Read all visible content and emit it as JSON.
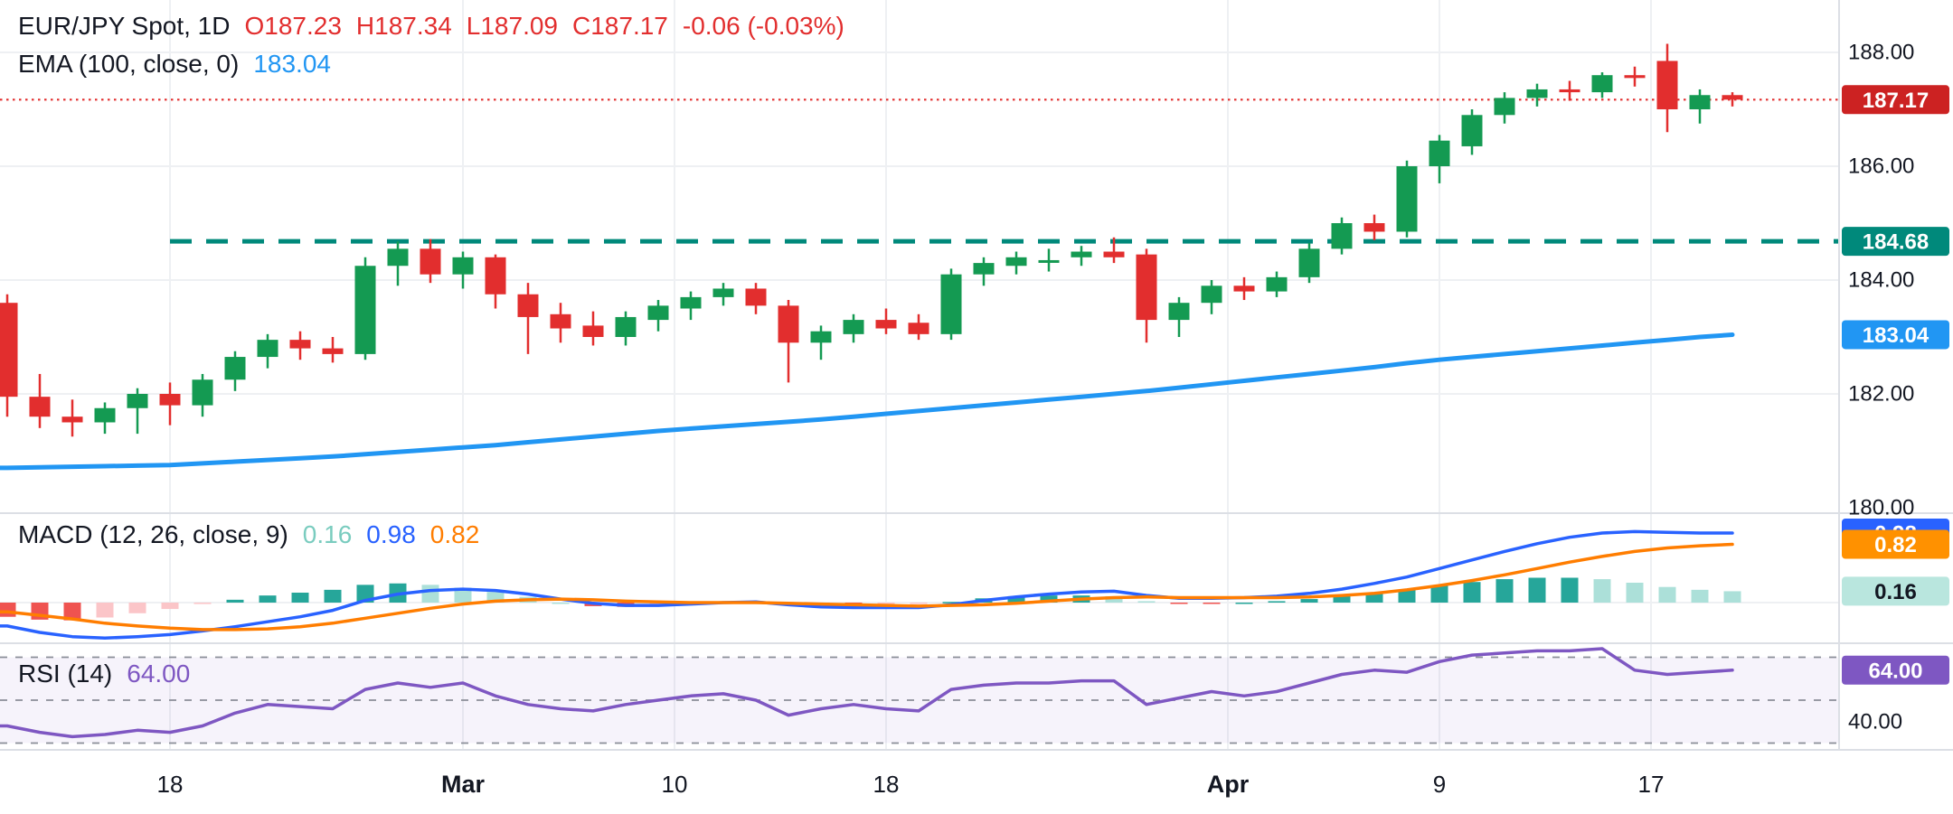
{
  "header": {
    "symbol": "EUR/JPY Spot, 1D",
    "o": "O187.23",
    "h": "H187.34",
    "l": "L187.09",
    "c": "C187.17",
    "change": "-0.06 (-0.03%)",
    "ema_label": "EMA (100, close, 0)",
    "ema_value": "183.04"
  },
  "colors": {
    "up": "#149a52",
    "down": "#e22e2e",
    "badge_red": "#cc2222",
    "teal": "#00897b",
    "ema_blue": "#2196f3",
    "macd_blue": "#2962ff",
    "signal_orange": "#ff7d00",
    "signal_badge": "#ff9100",
    "hist_pos": "#26a69a",
    "hist_pos_light": "#ace0d9",
    "hist_neg": "#ef5350",
    "hist_neg_light": "#fbc5c8",
    "hist_badge_bg": "#b9e6de",
    "rsi_purple": "#7e57c2",
    "rsi_band": "rgba(126,87,194,0.07)",
    "rsi_level": "#8a8e98",
    "grid": "#eef0f3",
    "separator": "#dcdfe5",
    "text": "#131722"
  },
  "chart_data": [
    {
      "type": "candlestick",
      "pane": "price",
      "title": "EUR/JPY Spot, 1D",
      "ylim": [
        180,
        188
      ],
      "grid": true,
      "y_axis_ticks": [
        {
          "value": 188,
          "label": "188.00"
        },
        {
          "value": 186,
          "label": "186.00"
        },
        {
          "value": 184,
          "label": "184.00"
        },
        {
          "value": 182,
          "label": "182.00"
        },
        {
          "value": 180,
          "label": "180.00"
        }
      ],
      "x_ticks": [
        {
          "index": 5,
          "label": "18",
          "bold": false
        },
        {
          "index": 14,
          "label": "Mar",
          "bold": true
        },
        {
          "index": 20.5,
          "label": "10",
          "bold": false
        },
        {
          "index": 27,
          "label": "18",
          "bold": false
        },
        {
          "index": 37.5,
          "label": "Apr",
          "bold": true
        },
        {
          "index": 44,
          "label": "9",
          "bold": false
        },
        {
          "index": 50.5,
          "label": "17",
          "bold": false
        }
      ],
      "price_line": {
        "value": 187.17,
        "label": "187.17",
        "style": "dotted"
      },
      "level_line": {
        "value": 184.68,
        "label": "184.68",
        "style": "dashed",
        "starts_at_index": 5
      },
      "ema": {
        "name": "EMA (100, close, 0)",
        "last": 183.04,
        "label": "183.04",
        "values": [
          180.7,
          180.71,
          180.72,
          180.73,
          180.74,
          180.75,
          180.78,
          180.81,
          180.84,
          180.87,
          180.9,
          180.94,
          180.98,
          181.02,
          181.06,
          181.1,
          181.15,
          181.2,
          181.25,
          181.3,
          181.35,
          181.39,
          181.43,
          181.47,
          181.51,
          181.55,
          181.6,
          181.65,
          181.7,
          181.75,
          181.8,
          181.85,
          181.9,
          181.95,
          182.0,
          182.05,
          182.11,
          182.17,
          182.23,
          182.29,
          182.35,
          182.41,
          182.47,
          182.54,
          182.6,
          182.65,
          182.7,
          182.75,
          182.8,
          182.85,
          182.9,
          182.95,
          183.0,
          183.04
        ]
      },
      "candles": [
        [
          183.6,
          183.75,
          181.6,
          181.95
        ],
        [
          181.95,
          182.35,
          181.4,
          181.6
        ],
        [
          181.6,
          181.9,
          181.25,
          181.5
        ],
        [
          181.5,
          181.85,
          181.3,
          181.75
        ],
        [
          181.75,
          182.1,
          181.3,
          182.0
        ],
        [
          182.0,
          182.2,
          181.45,
          181.8
        ],
        [
          181.8,
          182.35,
          181.6,
          182.25
        ],
        [
          182.25,
          182.75,
          182.05,
          182.65
        ],
        [
          182.65,
          183.05,
          182.45,
          182.95
        ],
        [
          182.95,
          183.1,
          182.6,
          182.8
        ],
        [
          182.8,
          183.0,
          182.55,
          182.7
        ],
        [
          182.7,
          184.4,
          182.6,
          184.25
        ],
        [
          184.25,
          184.68,
          183.9,
          184.55
        ],
        [
          184.55,
          184.72,
          183.95,
          184.1
        ],
        [
          184.1,
          184.5,
          183.85,
          184.4
        ],
        [
          184.4,
          184.45,
          183.5,
          183.75
        ],
        [
          183.75,
          183.95,
          182.7,
          183.35
        ],
        [
          183.4,
          183.6,
          182.9,
          183.15
        ],
        [
          183.2,
          183.45,
          182.85,
          183.0
        ],
        [
          183.0,
          183.45,
          182.85,
          183.35
        ],
        [
          183.3,
          183.65,
          183.1,
          183.55
        ],
        [
          183.5,
          183.8,
          183.3,
          183.7
        ],
        [
          183.7,
          183.95,
          183.55,
          183.85
        ],
        [
          183.85,
          183.95,
          183.4,
          183.55
        ],
        [
          183.55,
          183.65,
          182.2,
          182.9
        ],
        [
          182.9,
          183.2,
          182.6,
          183.1
        ],
        [
          183.05,
          183.4,
          182.9,
          183.3
        ],
        [
          183.3,
          183.5,
          183.05,
          183.15
        ],
        [
          183.25,
          183.4,
          182.95,
          183.05
        ],
        [
          183.05,
          184.2,
          182.95,
          184.1
        ],
        [
          184.1,
          184.4,
          183.9,
          184.3
        ],
        [
          184.25,
          184.5,
          184.1,
          184.4
        ],
        [
          184.35,
          184.55,
          184.15,
          184.35
        ],
        [
          184.4,
          184.6,
          184.25,
          184.5
        ],
        [
          184.5,
          184.75,
          184.3,
          184.4
        ],
        [
          184.45,
          184.55,
          182.9,
          183.3
        ],
        [
          183.3,
          183.7,
          183.0,
          183.6
        ],
        [
          183.6,
          184.0,
          183.4,
          183.9
        ],
        [
          183.9,
          184.05,
          183.65,
          183.8
        ],
        [
          183.8,
          184.15,
          183.7,
          184.05
        ],
        [
          184.05,
          184.65,
          183.95,
          184.55
        ],
        [
          184.55,
          185.1,
          184.45,
          185.0
        ],
        [
          185.0,
          185.15,
          184.7,
          184.85
        ],
        [
          184.85,
          186.1,
          184.75,
          186.0
        ],
        [
          186.0,
          186.55,
          185.7,
          186.45
        ],
        [
          186.35,
          187.0,
          186.2,
          186.9
        ],
        [
          186.9,
          187.3,
          186.75,
          187.2
        ],
        [
          187.2,
          187.45,
          187.05,
          187.35
        ],
        [
          187.35,
          187.5,
          187.15,
          187.3
        ],
        [
          187.3,
          187.65,
          187.2,
          187.6
        ],
        [
          187.6,
          187.75,
          187.4,
          187.55
        ],
        [
          187.85,
          188.15,
          186.6,
          187.0
        ],
        [
          187.0,
          187.35,
          186.75,
          187.25
        ],
        [
          187.25,
          187.3,
          187.05,
          187.17
        ]
      ]
    },
    {
      "type": "line+histogram",
      "pane": "macd",
      "legend": {
        "label": "MACD (12, 26, close, 9)",
        "hist": "0.16",
        "macd": "0.98",
        "signal": "0.82"
      },
      "last": {
        "macd": 0.98,
        "signal": 0.82,
        "hist": 0.16
      },
      "badge_labels": {
        "macd": "0.98",
        "signal": "0.82",
        "hist": "0.16"
      },
      "macd": [
        -0.33,
        -0.42,
        -0.48,
        -0.5,
        -0.48,
        -0.45,
        -0.4,
        -0.34,
        -0.27,
        -0.2,
        -0.11,
        0.03,
        0.12,
        0.17,
        0.19,
        0.17,
        0.12,
        0.05,
        -0.01,
        -0.04,
        -0.04,
        -0.02,
        0.0,
        0.01,
        -0.03,
        -0.06,
        -0.07,
        -0.07,
        -0.07,
        -0.03,
        0.03,
        0.08,
        0.12,
        0.15,
        0.16,
        0.1,
        0.06,
        0.06,
        0.07,
        0.09,
        0.13,
        0.19,
        0.27,
        0.36,
        0.48,
        0.6,
        0.72,
        0.83,
        0.92,
        0.98,
        1.0,
        0.99,
        0.98,
        0.98
      ],
      "signal": [
        -0.13,
        -0.18,
        -0.23,
        -0.29,
        -0.33,
        -0.36,
        -0.38,
        -0.38,
        -0.37,
        -0.34,
        -0.29,
        -0.22,
        -0.15,
        -0.08,
        -0.02,
        0.02,
        0.04,
        0.05,
        0.04,
        0.02,
        0.01,
        0.0,
        0.0,
        0.0,
        -0.01,
        -0.02,
        -0.03,
        -0.04,
        -0.05,
        -0.04,
        -0.03,
        -0.01,
        0.02,
        0.05,
        0.07,
        0.08,
        0.07,
        0.07,
        0.07,
        0.07,
        0.08,
        0.1,
        0.13,
        0.18,
        0.24,
        0.31,
        0.39,
        0.48,
        0.57,
        0.65,
        0.72,
        0.77,
        0.8,
        0.82
      ]
    },
    {
      "type": "line",
      "pane": "rsi",
      "legend": {
        "label": "RSI (14)",
        "value": "64.00"
      },
      "last": 64,
      "badge_label": "64.00",
      "levels": [
        70,
        50,
        30
      ],
      "axis_label": {
        "value": 40,
        "label": "40.00"
      },
      "values": [
        38,
        35,
        33,
        34,
        36,
        35,
        38,
        44,
        48,
        47,
        46,
        55,
        58,
        56,
        58,
        52,
        48,
        46,
        45,
        48,
        50,
        52,
        53,
        50,
        43,
        46,
        48,
        46,
        45,
        55,
        57,
        58,
        58,
        59,
        59,
        48,
        51,
        54,
        52,
        54,
        58,
        62,
        64,
        63,
        68,
        71,
        72,
        73,
        73,
        74,
        64,
        62,
        63,
        64
      ]
    }
  ]
}
